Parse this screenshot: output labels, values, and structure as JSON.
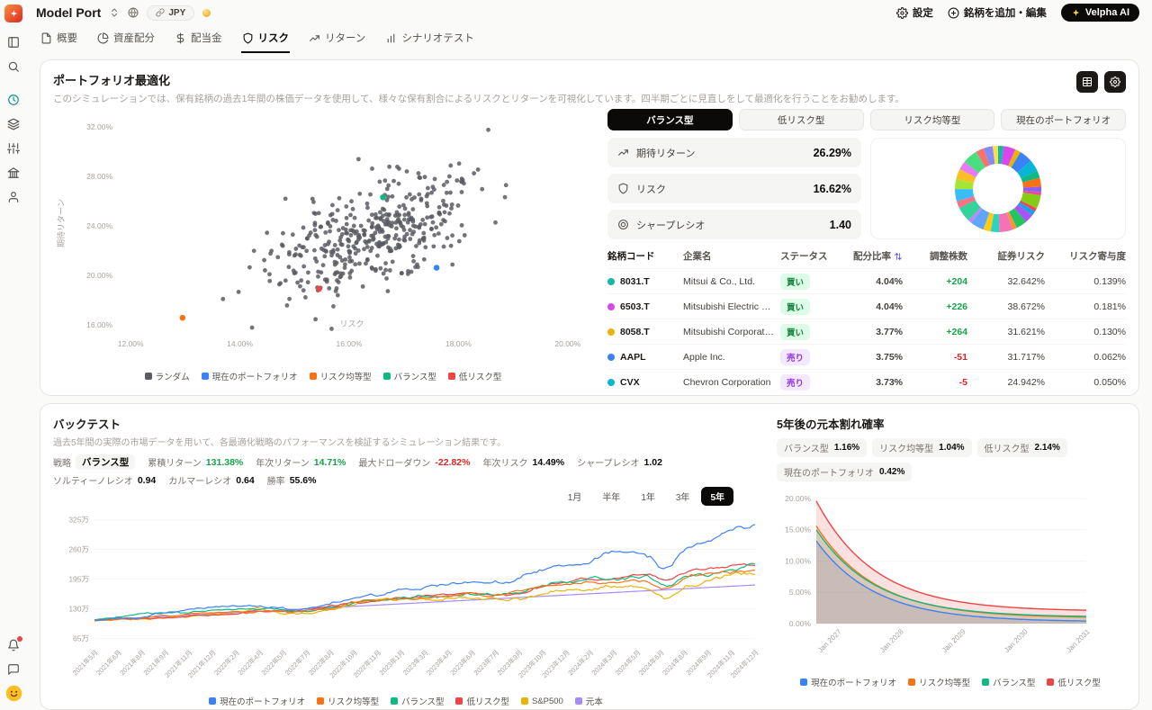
{
  "header": {
    "app_title": "Model Port",
    "currency": "JPY",
    "settings_label": "設定",
    "add_edit_label": "銘柄を追加・編集",
    "ai_button_label": "Velpha AI"
  },
  "nav_tabs": [
    {
      "key": "overview",
      "label": "概要",
      "icon": "file",
      "active": false
    },
    {
      "key": "allocation",
      "label": "資産配分",
      "icon": "pie",
      "active": false
    },
    {
      "key": "dividends",
      "label": "配当金",
      "icon": "dollar",
      "active": false
    },
    {
      "key": "risk",
      "label": "リスク",
      "icon": "shield",
      "active": true
    },
    {
      "key": "returns",
      "label": "リターン",
      "icon": "trend",
      "active": false
    },
    {
      "key": "scenario-test",
      "label": "シナリオテスト",
      "icon": "bars",
      "active": false
    }
  ],
  "sidebar": {
    "top_icons": [
      {
        "icon": "panel-left"
      },
      {
        "icon": "search"
      },
      {
        "icon": "clock",
        "color": "#0d9488",
        "gap": true
      },
      {
        "icon": "layers"
      },
      {
        "icon": "sliders"
      },
      {
        "icon": "bank"
      },
      {
        "icon": "user"
      }
    ],
    "bottom_icons": [
      {
        "icon": "bell",
        "badge": true
      },
      {
        "icon": "message"
      }
    ]
  },
  "optimization": {
    "title": "ポートフォリオ最適化",
    "description": "このシミュレーションでは、保有銘柄の過去1年間の株価データを使用して、様々な保有割合によるリスクとリターンを可視化しています。四半期ごとに見直しをして最適化を行うことをお勧めします。",
    "strategy_tabs": [
      {
        "key": "balanced",
        "label": "バランス型",
        "active": true
      },
      {
        "key": "low-risk",
        "label": "低リスク型",
        "active": false
      },
      {
        "key": "risk-parity",
        "label": "リスク均等型",
        "active": false
      },
      {
        "key": "current",
        "label": "現在のポートフォリオ",
        "active": false
      }
    ],
    "stats": [
      {
        "key": "expected-return",
        "icon": "trend",
        "label": "期待リターン",
        "value": "26.29%"
      },
      {
        "key": "risk",
        "icon": "shield",
        "label": "リスク",
        "value": "16.62%"
      },
      {
        "key": "sharpe-ratio",
        "icon": "target",
        "label": "シャープレシオ",
        "value": "1.40"
      }
    ],
    "table": {
      "headers": [
        "銘柄コード",
        "企業名",
        "ステータス",
        "配分比率",
        "調整株数",
        "証券リスク",
        "リスク寄与度"
      ],
      "sorted_header_index": 3,
      "rows": [
        {
          "dot_color": "#14b8a6",
          "code": "8031.T",
          "company": "Mitsui & Co., Ltd.",
          "status": "買い",
          "status_type": "buy",
          "allocation": "4.04%",
          "shares": "+204",
          "security_risk": "32.642%",
          "risk_contribution": "0.139%"
        },
        {
          "dot_color": "#d946ef",
          "code": "6503.T",
          "company": "Mitsubishi Electric Corpor...",
          "status": "買い",
          "status_type": "buy",
          "allocation": "4.04%",
          "shares": "+226",
          "security_risk": "38.672%",
          "risk_contribution": "0.181%"
        },
        {
          "dot_color": "#eab308",
          "code": "8058.T",
          "company": "Mitsubishi Corporation",
          "status": "買い",
          "status_type": "buy",
          "allocation": "3.77%",
          "shares": "+264",
          "security_risk": "31.621%",
          "risk_contribution": "0.130%"
        },
        {
          "dot_color": "#3b82f6",
          "code": "AAPL",
          "company": "Apple Inc.",
          "status": "売り",
          "status_type": "sell",
          "allocation": "3.75%",
          "shares": "-51",
          "security_risk": "31.717%",
          "risk_contribution": "0.062%"
        },
        {
          "dot_color": "#06b6d4",
          "code": "CVX",
          "company": "Chevron Corporation",
          "status": "売り",
          "status_type": "sell",
          "allocation": "3.73%",
          "shares": "-5",
          "security_risk": "24.942%",
          "risk_contribution": "0.050%"
        }
      ]
    }
  },
  "backtest": {
    "title": "バックテスト",
    "description": "過去5年間の実際の市場データを用いて、各最適化戦略のパフォーマンスを検証するシミュレーション結果です。",
    "stats": [
      {
        "key": "strategy",
        "label": "戦略",
        "value": "バランス型",
        "style": "pill"
      },
      {
        "key": "cumulative-return",
        "label": "累積リターン",
        "value": "131.38%",
        "style": "pos"
      },
      {
        "key": "annual-return",
        "label": "年次リターン",
        "value": "14.71%",
        "style": "pos"
      },
      {
        "key": "max-drawdown",
        "label": "最大ドローダウン",
        "value": "-22.82%",
        "style": "neg"
      },
      {
        "key": "annual-risk",
        "label": "年次リスク",
        "value": "14.49%",
        "style": "plain"
      },
      {
        "key": "sharpe",
        "label": "シャープレシオ",
        "value": "1.02",
        "style": "plain"
      },
      {
        "key": "sortino",
        "label": "ソルティーノレシオ",
        "value": "0.94",
        "style": "plain"
      },
      {
        "key": "calmar",
        "label": "カルマーレシオ",
        "value": "0.64",
        "style": "plain"
      },
      {
        "key": "win-rate",
        "label": "勝率",
        "value": "55.6%",
        "style": "plain"
      }
    ],
    "ranges": [
      {
        "key": "1m",
        "label": "1月",
        "active": false
      },
      {
        "key": "6m",
        "label": "半年",
        "active": false
      },
      {
        "key": "1y",
        "label": "1年",
        "active": false
      },
      {
        "key": "3y",
        "label": "3年",
        "active": false
      },
      {
        "key": "5y",
        "label": "5年",
        "active": true
      }
    ]
  },
  "probability": {
    "title": "5年後の元本割れ確率",
    "chips": [
      {
        "key": "balanced",
        "label": "バランス型",
        "value": "1.16%"
      },
      {
        "key": "risk-parity",
        "label": "リスク均等型",
        "value": "1.04%"
      },
      {
        "key": "low-risk",
        "label": "低リスク型",
        "value": "2.14%"
      },
      {
        "key": "current",
        "label": "現在のポートフォリオ",
        "value": "0.42%"
      }
    ]
  },
  "chart_data": {
    "scatter": {
      "type": "scatter",
      "xlabel": "リスク",
      "ylabel": "期待リターン",
      "x_range": [
        11.8,
        20.3
      ],
      "y_range": [
        15.4,
        33.0
      ],
      "x_ticks": [
        {
          "v": 12,
          "label": "12.00%"
        },
        {
          "v": 14,
          "label": "14.00%"
        },
        {
          "v": 16,
          "label": "16.00%"
        },
        {
          "v": 18,
          "label": "18.00%"
        },
        {
          "v": 20,
          "label": "20.00%"
        }
      ],
      "y_ticks": [
        {
          "v": 32,
          "label": "32.00%"
        },
        {
          "v": 28,
          "label": "28.00%"
        },
        {
          "v": 24,
          "label": "24.00%"
        },
        {
          "v": 20,
          "label": "20.00%"
        },
        {
          "v": 16,
          "label": "16.00%"
        }
      ],
      "random_cloud": {
        "count": 430,
        "seed": 13,
        "center_x": 16.45,
        "center_y": 23.3,
        "sd_x": 0.95,
        "sd_y": 2.45,
        "corr": 0.6,
        "color": "#5b5b63"
      },
      "portfolios": [
        {
          "name": "現在のポートフォリオ",
          "x": 17.6,
          "y": 20.6,
          "color": "#3b82f6"
        },
        {
          "name": "リスク均等型",
          "x": 12.95,
          "y": 16.55,
          "color": "#f97316"
        },
        {
          "name": "バランス型",
          "x": 16.62,
          "y": 26.29,
          "color": "#10b981"
        },
        {
          "name": "低リスク型",
          "x": 15.45,
          "y": 18.9,
          "color": "#ef4444"
        }
      ],
      "legend": [
        {
          "label": "ランダム",
          "color": "#5b5b63"
        },
        {
          "label": "現在のポートフォリオ",
          "color": "#3b82f6"
        },
        {
          "label": "リスク均等型",
          "color": "#f97316"
        },
        {
          "label": "バランス型",
          "color": "#10b981"
        },
        {
          "label": "低リスク型",
          "color": "#ef4444"
        }
      ]
    },
    "allocation_donut": {
      "type": "pie",
      "segment_count": 30,
      "segments_seed": 5,
      "colors": [
        "#14b8a6",
        "#d946ef",
        "#eab308",
        "#3b82f6",
        "#06b6d4",
        "#10b981",
        "#f97316",
        "#8b5cf6",
        "#ec4899",
        "#84cc16",
        "#f43f5e",
        "#0ea5e9",
        "#a855f7",
        "#22c55e",
        "#fb923c",
        "#f472b6",
        "#2dd4bf",
        "#facc15",
        "#60a5fa",
        "#c084fc",
        "#34d399",
        "#fb7185",
        "#38bdf8",
        "#a3e635",
        "#fbbf24",
        "#e879f9",
        "#4ade80",
        "#f87171",
        "#818cf8",
        "#fde047"
      ]
    },
    "backtest": {
      "type": "line",
      "y_range": [
        52,
        340
      ],
      "y_ticks": [
        {
          "v": 65,
          "label": "65万"
        },
        {
          "v": 130,
          "label": "130万"
        },
        {
          "v": 195,
          "label": "195万"
        },
        {
          "v": 260,
          "label": "260万"
        },
        {
          "v": 325,
          "label": "325万"
        }
      ],
      "x_labels": [
        "2021年5月",
        "2021年6月",
        "2021年8月",
        "2021年9月",
        "2021年11月",
        "2021年12月",
        "2022年2月",
        "2022年4月",
        "2022年5月",
        "2022年7月",
        "2022年8月",
        "2022年10月",
        "2022年11月",
        "2023年1月",
        "2023年3月",
        "2023年4月",
        "2023年6月",
        "2023年7月",
        "2023年9月",
        "2023年10月",
        "2023年12月",
        "2024年2月",
        "2024年3月",
        "2024年5月",
        "2024年6月",
        "2024年8月",
        "2024年9月",
        "2024年11月",
        "2024年12月"
      ],
      "points_per_series": 240,
      "dips": [
        {
          "t": 0.32,
          "depth": 0.09,
          "width": 0.06
        },
        {
          "t": 0.62,
          "depth": 0.05,
          "width": 0.04
        },
        {
          "t": 0.865,
          "depth": 0.13,
          "width": 0.022
        }
      ],
      "series": [
        {
          "name": "現在のポートフォリオ",
          "color": "#3b82f6",
          "start": 105,
          "end": 304,
          "vol": 0.01,
          "seed": 101,
          "dip_scale": 1.1
        },
        {
          "name": "リスク均等型",
          "color": "#f97316",
          "start": 105,
          "end": 222,
          "vol": 0.008,
          "seed": 202,
          "dip_scale": 0.9
        },
        {
          "name": "バランス型",
          "color": "#10b981",
          "start": 105,
          "end": 231,
          "vol": 0.009,
          "seed": 303,
          "dip_scale": 0.95
        },
        {
          "name": "低リスク型",
          "color": "#ef4444",
          "start": 105,
          "end": 228,
          "vol": 0.007,
          "seed": 404,
          "dip_scale": 0.7
        },
        {
          "name": "S&P500",
          "color": "#eab308",
          "start": 105,
          "end": 214,
          "vol": 0.011,
          "seed": 505,
          "dip_scale": 1.3
        },
        {
          "name": "元本",
          "color": "#a78bfa",
          "start": 105,
          "end": 182,
          "vol": 0,
          "seed": 0,
          "dip_scale": 0,
          "straight": true
        }
      ]
    },
    "loss_probability": {
      "type": "area",
      "y_range": [
        0,
        21
      ],
      "y_ticks": [
        {
          "v": 0,
          "label": "0.00%"
        },
        {
          "v": 5,
          "label": "5.00%"
        },
        {
          "v": 10,
          "label": "10.00%"
        },
        {
          "v": 15,
          "label": "15.00%"
        },
        {
          "v": 20,
          "label": "20.00%"
        }
      ],
      "x_labels": [
        {
          "label": "Jan 2027",
          "pos": 0.08
        },
        {
          "label": "Jan 2028",
          "pos": 0.31
        },
        {
          "label": "Jan 2029",
          "pos": 0.54
        },
        {
          "label": "Jan 2030",
          "pos": 0.77
        },
        {
          "label": "Jan 2031",
          "pos": 1.0
        }
      ],
      "decay_k": 4.6,
      "points": 130,
      "series": [
        {
          "name": "現在のポートフォリオ",
          "color": "#3b82f6",
          "start": 13.2,
          "end": 0.42
        },
        {
          "name": "リスク均等型",
          "color": "#f97316",
          "start": 15.6,
          "end": 1.04
        },
        {
          "name": "バランス型",
          "color": "#10b981",
          "start": 15.0,
          "end": 1.16
        },
        {
          "name": "低リスク型",
          "color": "#ef4444",
          "start": 19.6,
          "end": 2.14
        }
      ]
    }
  }
}
